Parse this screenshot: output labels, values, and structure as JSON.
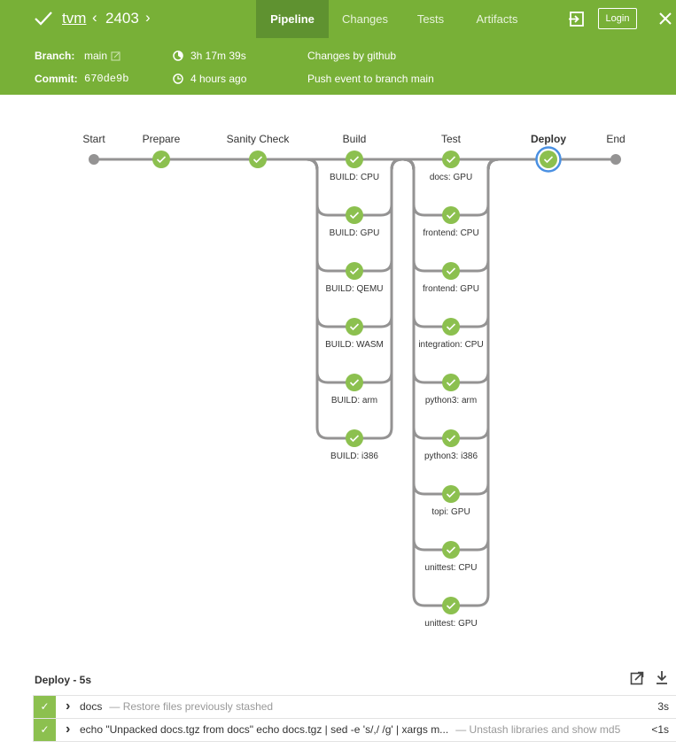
{
  "header": {
    "job": "tvm",
    "run": "2403",
    "tabs": [
      "Pipeline",
      "Changes",
      "Tests",
      "Artifacts"
    ],
    "login": "Login"
  },
  "summary": {
    "branch_label": "Branch:",
    "branch": "main",
    "commit_label": "Commit:",
    "commit": "670de9b",
    "duration": "3h 17m 39s",
    "time": "4 hours ago",
    "changes": "Changes by github",
    "cause": "Push event to branch main"
  },
  "pipeline": {
    "stages": [
      {
        "name": "Start"
      },
      {
        "name": "Prepare"
      },
      {
        "name": "Sanity Check"
      },
      {
        "name": "Build",
        "branches": [
          "BUILD: CPU",
          "BUILD: GPU",
          "BUILD: QEMU",
          "BUILD: WASM",
          "BUILD: arm",
          "BUILD: i386"
        ]
      },
      {
        "name": "Test",
        "branches": [
          "docs: GPU",
          "frontend: CPU",
          "frontend: GPU",
          "integration: CPU",
          "python3: arm",
          "python3: i386",
          "topi: GPU",
          "unittest: CPU",
          "unittest: GPU"
        ]
      },
      {
        "name": "Deploy",
        "selected": true
      },
      {
        "name": "End"
      }
    ]
  },
  "steps": {
    "title": "Deploy - 5s",
    "rows": [
      {
        "name": "docs",
        "description": "— Restore files previously stashed",
        "duration": "3s"
      },
      {
        "name": "echo \"Unpacked docs.tgz from docs\" echo docs.tgz | sed -e 's/,/ /g' | xargs m...",
        "description": "— Unstash libraries and show md5",
        "duration": "<1s"
      }
    ]
  }
}
